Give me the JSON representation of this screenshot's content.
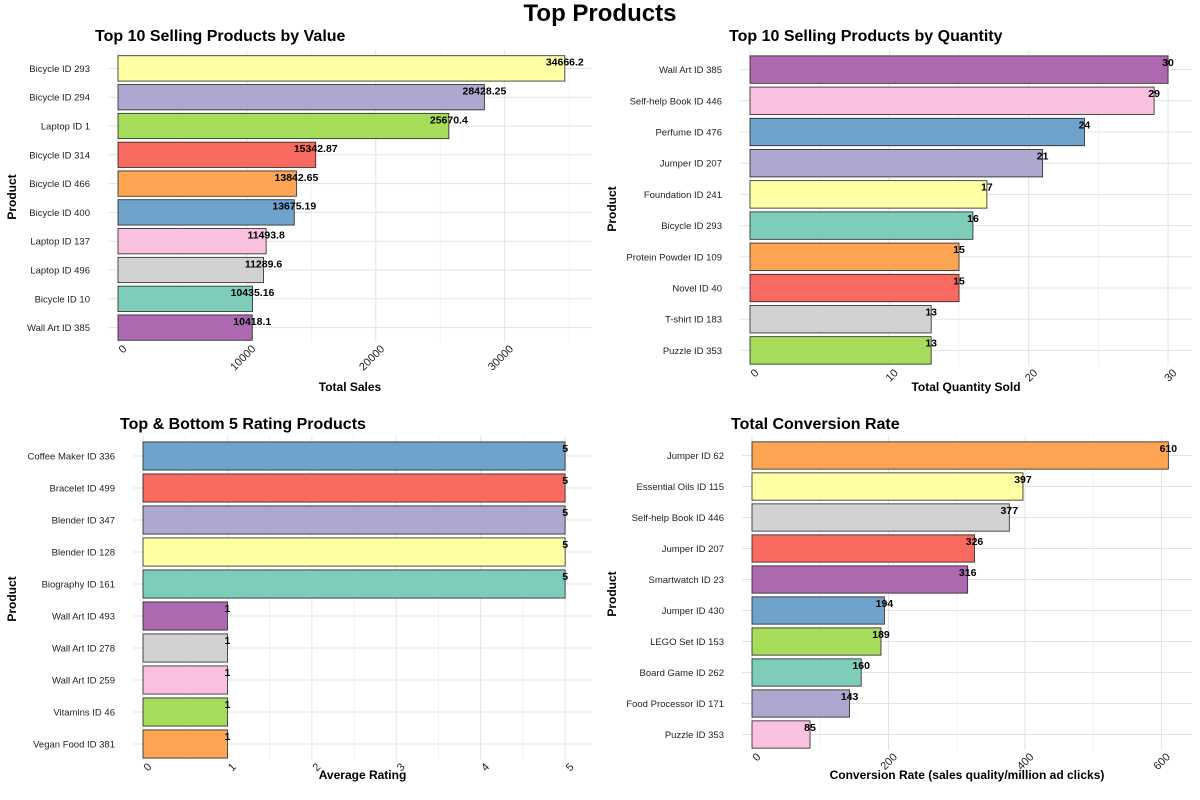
{
  "figure": {
    "title": "Top Products"
  },
  "chart_data": [
    {
      "type": "bar",
      "orientation": "horizontal",
      "title": "Top 10 Selling Products by Value",
      "xlabel": "Total Sales",
      "ylabel": "Product",
      "xlim": [
        0,
        36000
      ],
      "xticks": [
        0,
        10000,
        20000,
        30000
      ],
      "xtick_labels": [
        "0",
        "10000",
        "20000",
        "30000"
      ],
      "grid": true,
      "categories": [
        "Bicycle ID 293",
        "Bicycle ID 294",
        "Laptop ID 1",
        "Bicycle ID 314",
        "Bicycle ID 466",
        "Bicycle ID 400",
        "Laptop ID 137",
        "Laptop ID 496",
        "Bicycle ID 10",
        "Wall Art ID 385"
      ],
      "values": [
        34666.2,
        28428.25,
        25670.4,
        15342.87,
        13842.65,
        13675.19,
        11493.8,
        11289.6,
        10435.16,
        10418.1
      ],
      "labels": [
        "34666.2",
        "28428.25",
        "25670.4",
        "15342.87",
        "13842.65",
        "13675.19",
        "11493.8",
        "11289.6",
        "10435.16",
        "10418.1"
      ],
      "colors": [
        "#FFFFA3",
        "#ADA8CF",
        "#A6DC5A",
        "#F8695F",
        "#FDA552",
        "#6FA3CC",
        "#F9C0DF",
        "#D2D2D2",
        "#7ECDBB",
        "#AD69AF"
      ]
    },
    {
      "type": "bar",
      "orientation": "horizontal",
      "title": "Top 10 Selling Products by Quantity",
      "xlabel": "Total Quantity Sold",
      "ylabel": "Product",
      "xlim": [
        0,
        31
      ],
      "xticks": [
        0,
        10,
        20,
        30
      ],
      "xtick_labels": [
        "0",
        "10",
        "20",
        "30"
      ],
      "grid": true,
      "categories": [
        "Wall Art ID 385",
        "Self-help Book ID 446",
        "Perfume ID 476",
        "Jumper ID 207",
        "Foundation ID 241",
        "Bicycle ID 293",
        "Protein Powder ID 109",
        "Novel ID 40",
        "T-shirt ID 183",
        "Puzzle ID 353"
      ],
      "values": [
        30,
        29,
        24,
        21,
        17,
        16,
        15,
        15,
        13,
        13
      ],
      "labels": [
        "30",
        "29",
        "24",
        "21",
        "17",
        "16",
        "15",
        "15",
        "13",
        "13"
      ],
      "colors": [
        "#AD69AF",
        "#F9C0DF",
        "#6FA3CC",
        "#ADA8CF",
        "#FFFFA3",
        "#7ECDBB",
        "#FDA552",
        "#F8695F",
        "#D2D2D2",
        "#A6DC5A"
      ]
    },
    {
      "type": "bar",
      "orientation": "horizontal",
      "title": "Top & Bottom 5 Rating Products",
      "xlabel": "Average Rating",
      "ylabel": "Product",
      "xlim": [
        0,
        5.2
      ],
      "xticks": [
        0,
        1,
        2,
        3,
        4,
        5
      ],
      "xtick_labels": [
        "0",
        "1",
        "2",
        "3",
        "4",
        "5"
      ],
      "grid": true,
      "categories": [
        "Coffee Maker ID 336",
        "Bracelet ID 499",
        "Blender ID 347",
        "Blender ID 128",
        "Biography ID 161",
        "Wall Art ID 493",
        "Wall Art ID 278",
        "Wall Art ID 259",
        "Vitamins ID 46",
        "Vegan Food ID 381"
      ],
      "values": [
        5,
        5,
        5,
        5,
        5,
        1,
        1,
        1,
        1,
        1
      ],
      "labels": [
        "5",
        "5",
        "5",
        "5",
        "5",
        "1",
        "1",
        "1",
        "1",
        "1"
      ],
      "colors": [
        "#6FA3CC",
        "#F8695F",
        "#ADA8CF",
        "#FFFFA3",
        "#7ECDBB",
        "#AD69AF",
        "#D2D2D2",
        "#F9C0DF",
        "#A6DC5A",
        "#FDA552"
      ]
    },
    {
      "type": "bar",
      "orientation": "horizontal",
      "title": "Total Conversion Rate",
      "xlabel": "Conversion Rate (sales quality/million ad clicks)",
      "ylabel": "Product",
      "xlim": [
        0,
        630
      ],
      "xticks": [
        0,
        200,
        400,
        600
      ],
      "xtick_labels": [
        "0",
        "200",
        "400",
        "600"
      ],
      "grid": true,
      "categories": [
        "Jumper ID 62",
        "Essential Oils ID 115",
        "Self-help Book ID 446",
        "Jumper ID 207",
        "Smartwatch ID 23",
        "Jumper ID 430",
        "LEGO Set ID 153",
        "Board Game ID 262",
        "Food Processor ID 171",
        "Puzzle ID 353"
      ],
      "values": [
        610,
        397,
        377,
        326,
        316,
        194,
        189,
        160,
        143,
        85
      ],
      "labels": [
        "610",
        "397",
        "377",
        "326",
        "316",
        "194",
        "189",
        "160",
        "143",
        "85"
      ],
      "colors": [
        "#FDA552",
        "#FFFFA3",
        "#D2D2D2",
        "#F8695F",
        "#AD69AF",
        "#6FA3CC",
        "#A6DC5A",
        "#7ECDBB",
        "#ADA8CF",
        "#F9C0DF"
      ]
    }
  ]
}
